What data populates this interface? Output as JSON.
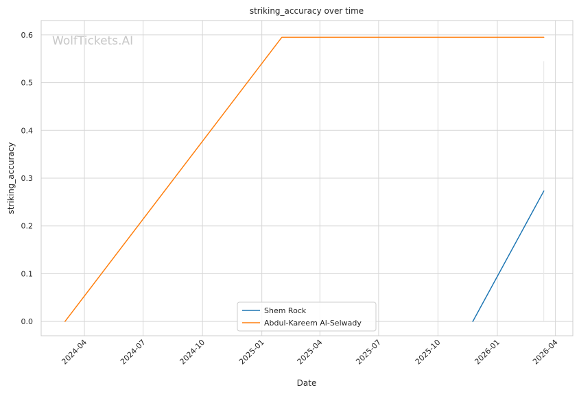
{
  "chart_data": {
    "type": "line",
    "title": "striking_accuracy over time",
    "xlabel": "Date",
    "ylabel": "striking_accuracy",
    "watermark": "WolfTickets.AI",
    "x_axis_type": "date",
    "xlim": [
      "2024-01-25",
      "2026-04-28"
    ],
    "ylim": [
      -0.03,
      0.63
    ],
    "x_ticks": [
      "2024-04-01",
      "2024-07-01",
      "2024-10-01",
      "2025-01-01",
      "2025-04-01",
      "2025-07-01",
      "2025-10-01",
      "2026-01-01",
      "2026-04-01"
    ],
    "x_tick_labels": [
      "2024-04",
      "2024-07",
      "2024-10",
      "2025-01",
      "2025-04",
      "2025-07",
      "2025-10",
      "2026-01",
      "2026-04"
    ],
    "y_ticks": [
      0.0,
      0.1,
      0.2,
      0.3,
      0.4,
      0.5,
      0.6
    ],
    "y_tick_labels": [
      "0.0",
      "0.1",
      "0.2",
      "0.3",
      "0.4",
      "0.5",
      "0.6"
    ],
    "grid": true,
    "legend_position": "bottom-center",
    "series": [
      {
        "name": "Shem Rock",
        "color": "#1f77b4",
        "points": [
          {
            "x": "2025-11-24",
            "y": 0.0
          },
          {
            "x": "2026-03-14",
            "y": 0.273
          }
        ]
      },
      {
        "name": "Abdul-Kareem Al-Selwady",
        "color": "#ff7f0e",
        "points": [
          {
            "x": "2024-03-02",
            "y": 0.0
          },
          {
            "x": "2025-02-01",
            "y": 0.595
          },
          {
            "x": "2026-03-14",
            "y": 0.595
          }
        ]
      }
    ]
  }
}
